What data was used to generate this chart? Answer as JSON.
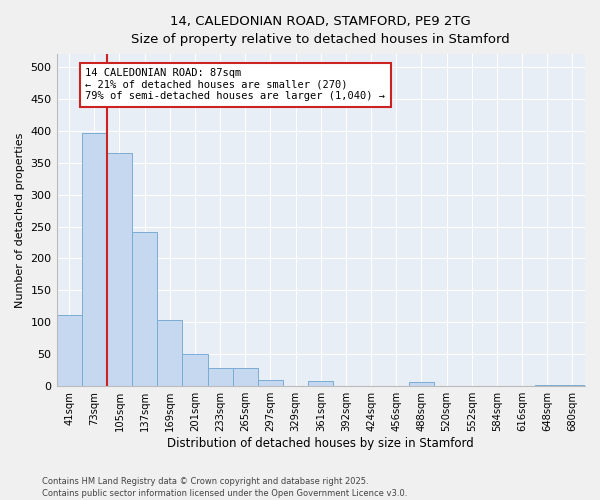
{
  "title_line1": "14, CALEDONIAN ROAD, STAMFORD, PE9 2TG",
  "title_line2": "Size of property relative to detached houses in Stamford",
  "xlabel": "Distribution of detached houses by size in Stamford",
  "ylabel": "Number of detached properties",
  "categories": [
    "41sqm",
    "73sqm",
    "105sqm",
    "137sqm",
    "169sqm",
    "201sqm",
    "233sqm",
    "265sqm",
    "297sqm",
    "329sqm",
    "361sqm",
    "392sqm",
    "424sqm",
    "456sqm",
    "488sqm",
    "520sqm",
    "552sqm",
    "584sqm",
    "616sqm",
    "648sqm",
    "680sqm"
  ],
  "values": [
    112,
    397,
    365,
    242,
    104,
    50,
    29,
    29,
    9,
    0,
    8,
    0,
    0,
    0,
    6,
    0,
    0,
    0,
    0,
    2,
    2
  ],
  "bar_color": "#c5d8f0",
  "bar_edge_color": "#7aadd4",
  "plot_bg_color": "#e8eef6",
  "fig_bg_color": "#f0f0f0",
  "grid_color": "#ffffff",
  "vline_x_index": 1,
  "vline_color": "#cc2222",
  "annotation_text": "14 CALEDONIAN ROAD: 87sqm\n← 21% of detached houses are smaller (270)\n79% of semi-detached houses are larger (1,040) →",
  "annotation_box_edgecolor": "#cc2222",
  "ylim": [
    0,
    520
  ],
  "yticks": [
    0,
    50,
    100,
    150,
    200,
    250,
    300,
    350,
    400,
    450,
    500
  ],
  "footer_line1": "Contains HM Land Registry data © Crown copyright and database right 2025.",
  "footer_line2": "Contains public sector information licensed under the Open Government Licence v3.0."
}
